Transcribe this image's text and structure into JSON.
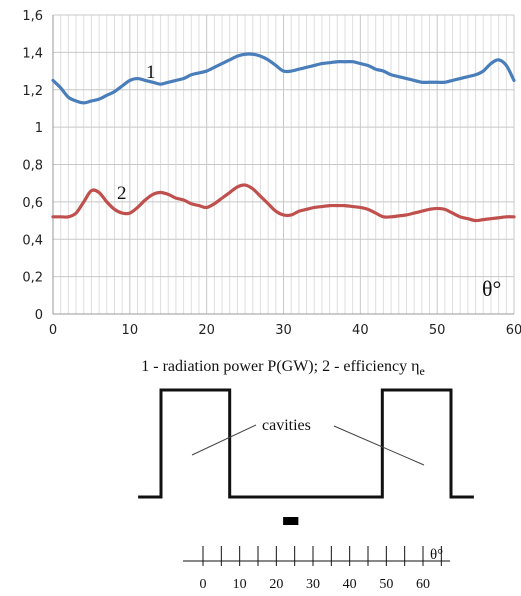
{
  "chart_data": [
    {
      "type": "line",
      "xlim": [
        0,
        60
      ],
      "ylim": [
        0,
        1.6
      ],
      "grid": "vertical minor every 1 and major every 10; horizontal every 0.2",
      "x_ticks": [
        0,
        10,
        20,
        30,
        40,
        50,
        60
      ],
      "y_ticks": [
        "0",
        "0,2",
        "0,4",
        "0,6",
        "0,8",
        "1",
        "1,2",
        "1,4",
        "1,6"
      ],
      "x_axis_symbol": "θ°",
      "caption": "1 - radiation power P(GW); 2 - efficiency η",
      "caption_subscript": "e",
      "series": [
        {
          "name": "1",
          "color": "#4a7ebb",
          "x": [
            0,
            1,
            2,
            3,
            4,
            5,
            6,
            7,
            8,
            9,
            10,
            11,
            12,
            13,
            14,
            15,
            16,
            17,
            18,
            19,
            20,
            21,
            22,
            23,
            24,
            25,
            26,
            27,
            28,
            29,
            30,
            31,
            32,
            33,
            34,
            35,
            36,
            37,
            38,
            39,
            40,
            41,
            42,
            43,
            44,
            45,
            46,
            47,
            48,
            49,
            50,
            51,
            52,
            53,
            54,
            55,
            56,
            57,
            58,
            59,
            60
          ],
          "values": [
            1.25,
            1.21,
            1.16,
            1.14,
            1.13,
            1.14,
            1.15,
            1.17,
            1.19,
            1.22,
            1.25,
            1.26,
            1.25,
            1.24,
            1.23,
            1.24,
            1.25,
            1.26,
            1.28,
            1.29,
            1.3,
            1.32,
            1.34,
            1.36,
            1.38,
            1.39,
            1.39,
            1.38,
            1.36,
            1.33,
            1.3,
            1.3,
            1.31,
            1.32,
            1.33,
            1.34,
            1.345,
            1.35,
            1.35,
            1.35,
            1.34,
            1.33,
            1.31,
            1.3,
            1.28,
            1.27,
            1.26,
            1.25,
            1.24,
            1.24,
            1.24,
            1.24,
            1.25,
            1.26,
            1.27,
            1.28,
            1.3,
            1.34,
            1.36,
            1.33,
            1.25
          ]
        },
        {
          "name": "2",
          "color": "#c0504d",
          "x": [
            0,
            1,
            2,
            3,
            4,
            5,
            6,
            7,
            8,
            9,
            10,
            11,
            12,
            13,
            14,
            15,
            16,
            17,
            18,
            19,
            20,
            21,
            22,
            23,
            24,
            25,
            26,
            27,
            28,
            29,
            30,
            31,
            32,
            33,
            34,
            35,
            36,
            37,
            38,
            39,
            40,
            41,
            42,
            43,
            44,
            45,
            46,
            47,
            48,
            49,
            50,
            51,
            52,
            53,
            54,
            55,
            56,
            57,
            58,
            59,
            60
          ],
          "values": [
            0.52,
            0.52,
            0.52,
            0.54,
            0.6,
            0.66,
            0.65,
            0.6,
            0.56,
            0.54,
            0.54,
            0.57,
            0.61,
            0.64,
            0.65,
            0.64,
            0.62,
            0.61,
            0.59,
            0.58,
            0.57,
            0.59,
            0.62,
            0.65,
            0.68,
            0.69,
            0.67,
            0.63,
            0.59,
            0.55,
            0.53,
            0.53,
            0.55,
            0.56,
            0.57,
            0.575,
            0.58,
            0.58,
            0.58,
            0.575,
            0.57,
            0.56,
            0.54,
            0.52,
            0.52,
            0.525,
            0.53,
            0.54,
            0.55,
            0.56,
            0.565,
            0.56,
            0.54,
            0.52,
            0.51,
            0.5,
            0.505,
            0.51,
            0.515,
            0.52,
            0.52
          ]
        }
      ]
    },
    {
      "type": "diagram",
      "label": "cavities",
      "profile_x": [
        -3,
        0,
        0,
        9,
        9,
        29,
        29,
        38,
        38,
        41
      ],
      "profile_level": [
        "low",
        "low",
        "high",
        "high",
        "low",
        "low",
        "high",
        "high",
        "low",
        "low"
      ],
      "marker_range": [
        16,
        18
      ],
      "scale_ticks": [
        0,
        10,
        20,
        30,
        40,
        50,
        60
      ],
      "scale_symbol": "θ°"
    }
  ]
}
